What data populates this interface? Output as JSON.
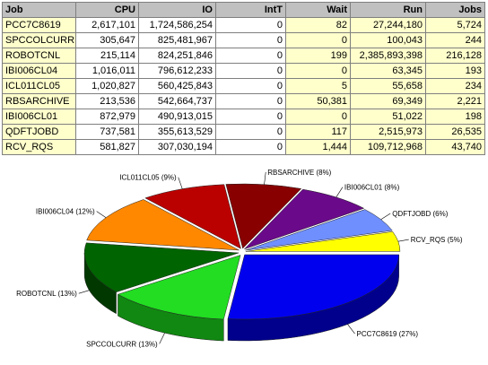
{
  "table": {
    "headers": [
      "Job",
      "CPU",
      "IO",
      "IntT",
      "Wait",
      "Run",
      "Jobs"
    ],
    "rows": [
      [
        "PCC7C8619",
        "2,617,101",
        "1,724,586,254",
        "0",
        "82",
        "27,244,180",
        "5,724"
      ],
      [
        "SPCCOLCURR",
        "305,647",
        "825,481,967",
        "0",
        "0",
        "100,043",
        "244"
      ],
      [
        "ROBOTCNL",
        "215,114",
        "824,251,846",
        "0",
        "199",
        "2,385,893,398",
        "216,128"
      ],
      [
        "IBI006CL04",
        "1,016,011",
        "796,612,233",
        "0",
        "0",
        "63,345",
        "193"
      ],
      [
        "ICL011CL05",
        "1,020,827",
        "560,425,843",
        "0",
        "5",
        "55,658",
        "234"
      ],
      [
        "RBSARCHIVE",
        "213,536",
        "542,664,737",
        "0",
        "50,381",
        "69,349",
        "2,221"
      ],
      [
        "IBI006CL01",
        "872,979",
        "490,913,015",
        "0",
        "0",
        "51,022",
        "198"
      ],
      [
        "QDFTJOBD",
        "737,581",
        "355,613,529",
        "0",
        "117",
        "2,515,973",
        "26,535"
      ],
      [
        "RCV_RQS",
        "581,827",
        "307,030,194",
        "0",
        "1,444",
        "109,712,968",
        "43,740"
      ]
    ]
  },
  "chart_data": {
    "type": "pie",
    "title": "",
    "style": "3d-exploded",
    "slices": [
      {
        "label": "PCC7C8619 (27%)",
        "value": 27,
        "color": "#0000ee",
        "side": "#00008c"
      },
      {
        "label": "SPCCOLCURR (13%)",
        "value": 13,
        "color": "#22dd22",
        "side": "#118811"
      },
      {
        "label": "ROBOTCNL (13%)",
        "value": 13,
        "color": "#006400",
        "side": "#003800"
      },
      {
        "label": "IBI006CL04 (12%)",
        "value": 12,
        "color": "#ff8800",
        "side": "#a85a00"
      },
      {
        "label": "ICL011CL05 (9%)",
        "value": 9,
        "color": "#bb0000",
        "side": "#700000"
      },
      {
        "label": "RBSARCHIVE (8%)",
        "value": 8,
        "color": "#880000",
        "side": "#500000"
      },
      {
        "label": "IBI006CL01 (8%)",
        "value": 8,
        "color": "#6a0a8a",
        "side": "#3e0552"
      },
      {
        "label": "QDFTJOBD (6%)",
        "value": 6,
        "color": "#6f8fff",
        "side": "#4058a8"
      },
      {
        "label": "RCV_RQS (5%)",
        "value": 5,
        "color": "#ffff00",
        "side": "#b0b000"
      }
    ]
  }
}
